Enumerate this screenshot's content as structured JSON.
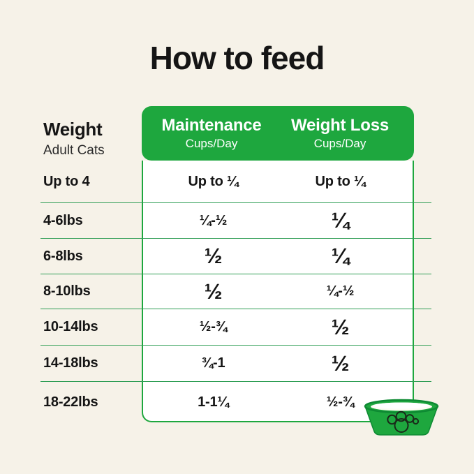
{
  "title": "How to feed",
  "weight_header": {
    "label": "Weight",
    "sublabel": "Adult Cats"
  },
  "columns": [
    {
      "label": "Maintenance",
      "sublabel": "Cups/Day"
    },
    {
      "label": "Weight Loss",
      "sublabel": "Cups/Day"
    }
  ],
  "rows": [
    {
      "weight": "Up to 4",
      "maintenance": "Up to ¼",
      "maintenance_style": "sm",
      "weight_loss": "Up to ¼",
      "weight_loss_style": "sm"
    },
    {
      "weight": "4-6lbs",
      "maintenance": "¼-½",
      "maintenance_style": "sm",
      "weight_loss": "¼",
      "weight_loss_style": "lg"
    },
    {
      "weight": "6-8lbs",
      "maintenance": "½",
      "maintenance_style": "lg",
      "weight_loss": "¼",
      "weight_loss_style": "lg"
    },
    {
      "weight": "8-10lbs",
      "maintenance": "½",
      "maintenance_style": "lg",
      "weight_loss": "¼-½",
      "weight_loss_style": "sm"
    },
    {
      "weight": "10-14lbs",
      "maintenance": "½-¾",
      "maintenance_style": "sm",
      "weight_loss": "½",
      "weight_loss_style": "lg"
    },
    {
      "weight": "14-18lbs",
      "maintenance": "¾-1",
      "maintenance_style": "sm",
      "weight_loss": "½",
      "weight_loss_style": "lg"
    },
    {
      "weight": "18-22lbs",
      "maintenance": "1-1¼",
      "maintenance_style": "sm",
      "weight_loss": "½-¾",
      "weight_loss_style": "sm"
    }
  ],
  "icons": {
    "bowl": "pet-bowl-paw-icon"
  },
  "colors": {
    "green": "#1ea73e",
    "green_dark": "#0e8a33",
    "background": "#f6f2e8",
    "table_line": "#2f9e55",
    "text": "#151515",
    "table_bg": "#ffffff",
    "header_text": "#ffffff"
  }
}
